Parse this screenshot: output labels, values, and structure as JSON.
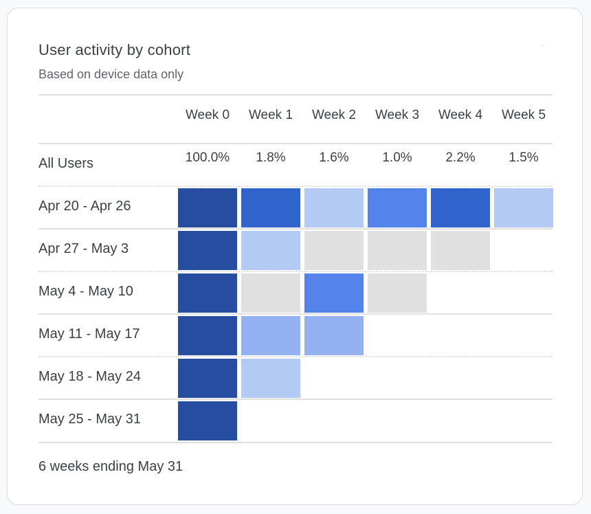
{
  "card": {
    "title": "User activity by cohort",
    "subtitle": "Based on device data only",
    "footer": "6 weeks ending May 31"
  },
  "chart_data": {
    "type": "heatmap",
    "title": "User activity by cohort",
    "subtitle": "Based on device data only",
    "columns": [
      "Week 0",
      "Week 1",
      "Week 2",
      "Week 3",
      "Week 4",
      "Week 5"
    ],
    "summary_row": {
      "label": "All Users",
      "values": [
        "100.0%",
        "1.8%",
        "1.6%",
        "1.0%",
        "2.2%",
        "1.5%"
      ]
    },
    "rows": [
      {
        "label": "Apr 20 - Apr 26",
        "levels": [
          5,
          4,
          1,
          3,
          4,
          1
        ]
      },
      {
        "label": "Apr 27 - May 3",
        "levels": [
          5,
          1,
          0,
          0,
          0
        ]
      },
      {
        "label": "May 4 - May 10",
        "levels": [
          5,
          0,
          3,
          0
        ]
      },
      {
        "label": "May 11 - May 17",
        "levels": [
          5,
          2,
          2
        ]
      },
      {
        "label": "May 18 - May 24",
        "levels": [
          5,
          1
        ]
      },
      {
        "label": "May 25 - May 31",
        "levels": [
          5
        ]
      }
    ],
    "level_colors": [
      "#e0e0e0",
      "#b3caf5",
      "#93b1f0",
      "#5383eb",
      "#3064cc",
      "#264d9f"
    ],
    "legend": "none",
    "footer": "6 weeks ending May 31"
  }
}
